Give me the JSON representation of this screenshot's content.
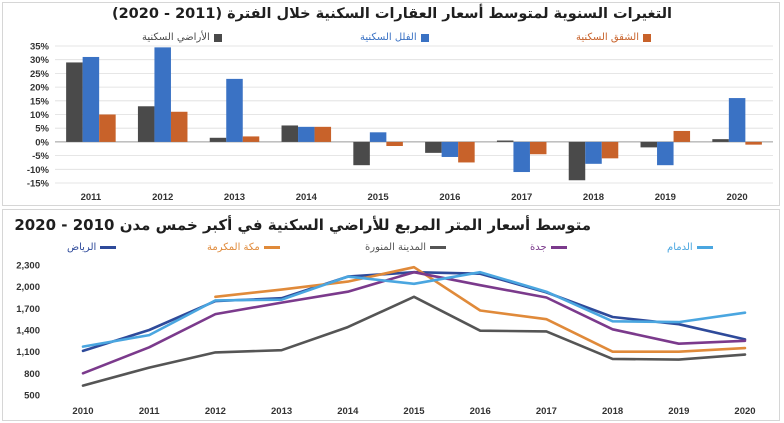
{
  "chart_data": [
    {
      "type": "bar",
      "title": "التغيرات السنوية لمتوسط أسعار العقارات السكنية خلال الفترة (2011 - 2020)",
      "categories": [
        "2011",
        "2012",
        "2013",
        "2014",
        "2015",
        "2016",
        "2017",
        "2018",
        "2019",
        "2020"
      ],
      "ylim": [
        -15,
        35
      ],
      "yticks": [
        "35%",
        "30%",
        "25%",
        "20%",
        "15%",
        "10%",
        "5%",
        "0%",
        "-5%",
        "-10%",
        "-15%"
      ],
      "ytick_values": [
        35,
        30,
        25,
        20,
        15,
        10,
        5,
        0,
        -5,
        -10,
        -15
      ],
      "grid": true,
      "series": [
        {
          "name": "الأراضي السكنية",
          "color": "#4a4a4a",
          "values": [
            29,
            13,
            1.5,
            6,
            -8.5,
            -4,
            0.5,
            -14,
            -2,
            1
          ]
        },
        {
          "name": "الفلل السكنية",
          "color": "#3a72c4",
          "values": [
            31,
            34.5,
            23,
            5.5,
            3.5,
            -5.5,
            -11,
            -8,
            -8.5,
            16
          ]
        },
        {
          "name": "الشقق السكنية",
          "color": "#c8622a",
          "values": [
            10,
            11,
            2,
            5.5,
            -1.5,
            -7.5,
            -4.5,
            -6,
            4,
            -1
          ]
        }
      ]
    },
    {
      "type": "line",
      "title": "متوسط أسعار المتر المربع للأراضي السكنية في أكبر خمس مدن 2010 - 2020",
      "x": [
        "2010",
        "2011",
        "2012",
        "2013",
        "2014",
        "2015",
        "2016",
        "2017",
        "2018",
        "2019",
        "2020"
      ],
      "ylim": [
        500,
        2300
      ],
      "yticks": [
        "2,300",
        "2,000",
        "1,700",
        "1,400",
        "1,100",
        "800",
        "500"
      ],
      "ytick_values": [
        2300,
        2000,
        1700,
        1400,
        1100,
        800,
        500
      ],
      "grid": false,
      "series": [
        {
          "name": "الرياض",
          "color": "#2e4a9a",
          "values": [
            1110,
            1400,
            1800,
            1840,
            2140,
            2200,
            2180,
            1920,
            1580,
            1480,
            1270
          ]
        },
        {
          "name": "مكة المكرمة",
          "color": "#e08a3a",
          "values": [
            null,
            null,
            1860,
            1960,
            2070,
            2270,
            1670,
            1550,
            1100,
            1100,
            1150
          ]
        },
        {
          "name": "المدينة المنورة",
          "color": "#555555",
          "values": [
            630,
            880,
            1090,
            1120,
            1440,
            1860,
            1390,
            1380,
            1000,
            990,
            1060
          ]
        },
        {
          "name": "جدة",
          "color": "#7b3a8c",
          "values": [
            800,
            1160,
            1620,
            1780,
            1930,
            2200,
            2020,
            1850,
            1410,
            1210,
            1250
          ]
        },
        {
          "name": "الدمام",
          "color": "#4aa6e0",
          "values": [
            1170,
            1330,
            1810,
            1820,
            2140,
            2040,
            2200,
            1930,
            1520,
            1510,
            1640
          ]
        }
      ]
    }
  ]
}
